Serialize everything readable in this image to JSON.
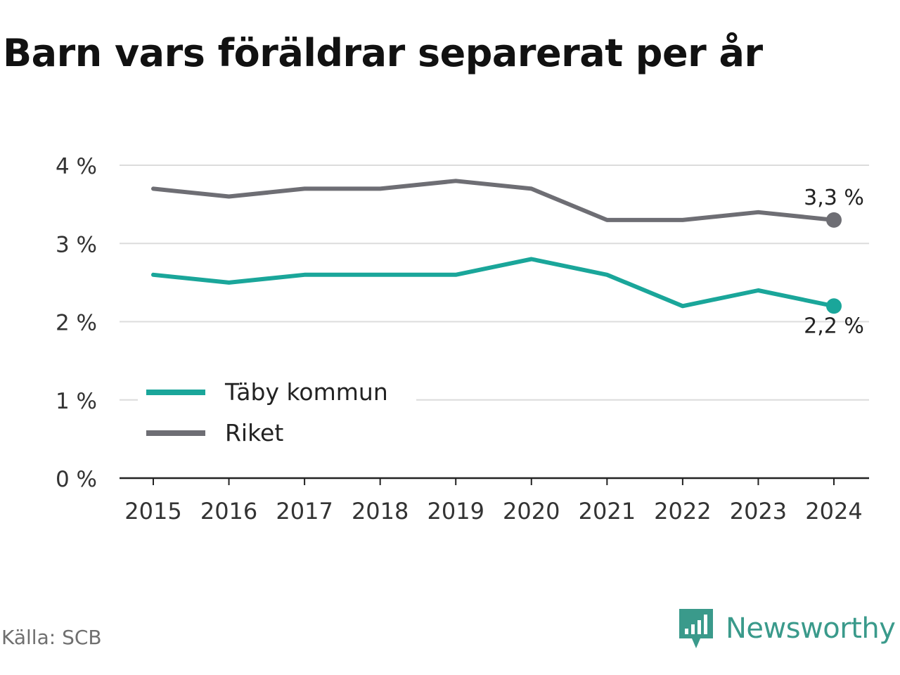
{
  "header": {
    "title": "Barn vars föräldrar separerat per år"
  },
  "footer": {
    "source": "Källa: SCB",
    "brand": "Newsworthy"
  },
  "chart_data": {
    "type": "line",
    "title": "Barn vars föräldrar separerat per år",
    "x": [
      "2015",
      "2016",
      "2017",
      "2018",
      "2019",
      "2020",
      "2021",
      "2022",
      "2023",
      "2024"
    ],
    "y_ticks": [
      0,
      1,
      2,
      3,
      4
    ],
    "y_tick_labels": [
      "0 %",
      "1 %",
      "2 %",
      "3 %",
      "4 %"
    ],
    "ylim": [
      0,
      4
    ],
    "grid": true,
    "legend_position": "bottom-left",
    "series": [
      {
        "name": "Täby kommun",
        "color": "#1aa69a",
        "values": [
          2.6,
          2.5,
          2.6,
          2.6,
          2.6,
          2.8,
          2.6,
          2.2,
          2.4,
          2.2
        ],
        "end_label": "2,2 %"
      },
      {
        "name": "Riket",
        "color": "#6e6e74",
        "values": [
          3.7,
          3.6,
          3.7,
          3.7,
          3.8,
          3.7,
          3.3,
          3.3,
          3.4,
          3.3
        ],
        "end_label": "3,3 %"
      }
    ]
  }
}
